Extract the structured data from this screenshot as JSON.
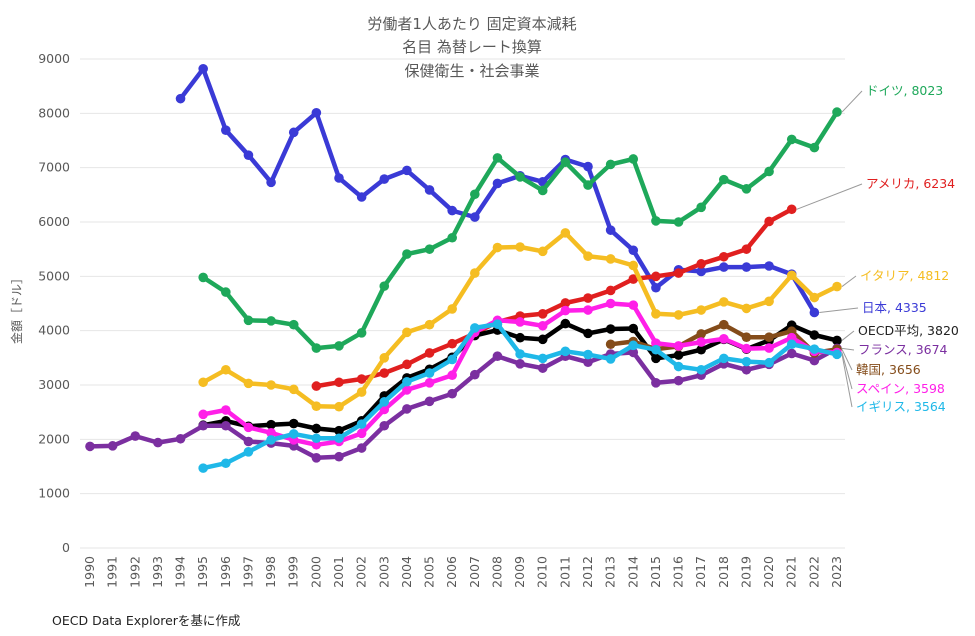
{
  "chart_data": {
    "type": "line",
    "title_lines": [
      "労働者1人あたり 固定資本減耗",
      "名目 為替レート換算",
      "保健衛生・社会事業"
    ],
    "ylabel": "金額［ドル］",
    "xlabel": "",
    "ylim": [
      0,
      9000
    ],
    "yticks": [
      0,
      1000,
      2000,
      3000,
      4000,
      5000,
      6000,
      7000,
      8000,
      9000
    ],
    "categories": [
      "1990",
      "1991",
      "1992",
      "1993",
      "1994",
      "1995",
      "1996",
      "1997",
      "1998",
      "1999",
      "2000",
      "2001",
      "2002",
      "2003",
      "2004",
      "2005",
      "2006",
      "2007",
      "2008",
      "2009",
      "2010",
      "2011",
      "2012",
      "2013",
      "2014",
      "2015",
      "2016",
      "2017",
      "2018",
      "2019",
      "2020",
      "2021",
      "2022",
      "2023"
    ],
    "source": "OECD Data Explorerを基に作成",
    "series": [
      {
        "name": "日本",
        "label": "日本, 4335",
        "color": "#3a3ad6",
        "values": [
          null,
          null,
          null,
          null,
          8270,
          8820,
          7690,
          7230,
          6730,
          7650,
          8010,
          6810,
          6460,
          6790,
          6950,
          6590,
          6210,
          6090,
          6710,
          6850,
          6740,
          7150,
          7020,
          5850,
          5480,
          4790,
          5120,
          5090,
          5170,
          5170,
          5190,
          5040,
          4335,
          null
        ]
      },
      {
        "name": "ドイツ",
        "label": "ドイツ, 8023",
        "color": "#1ea85a",
        "values": [
          null,
          null,
          null,
          null,
          null,
          4980,
          4710,
          4190,
          4180,
          4110,
          3680,
          3720,
          3960,
          4820,
          5410,
          5500,
          5710,
          6510,
          7180,
          6830,
          6580,
          7100,
          6680,
          7060,
          7160,
          6020,
          6000,
          6270,
          6780,
          6610,
          6930,
          7520,
          7370,
          8023
        ]
      },
      {
        "name": "アメリカ",
        "label": "アメリカ, 6234",
        "color": "#e01f1f",
        "values": [
          null,
          null,
          null,
          null,
          null,
          null,
          null,
          null,
          null,
          null,
          2980,
          3050,
          3110,
          3220,
          3380,
          3590,
          3760,
          3950,
          4160,
          4270,
          4310,
          4510,
          4600,
          4740,
          4950,
          5000,
          5060,
          5230,
          5360,
          5500,
          6010,
          6234,
          null,
          null
        ]
      },
      {
        "name": "イタリア",
        "label": "イタリア, 4812",
        "color": "#f5bd22",
        "values": [
          null,
          null,
          null,
          null,
          null,
          3050,
          3280,
          3030,
          3000,
          2920,
          2610,
          2600,
          2870,
          3500,
          3970,
          4110,
          4400,
          5060,
          5530,
          5540,
          5460,
          5800,
          5370,
          5320,
          5200,
          4310,
          4290,
          4380,
          4530,
          4410,
          4540,
          5020,
          4610,
          4812
        ]
      },
      {
        "name": "OECD平均",
        "label": "OECD平均, 3820",
        "color": "#000000",
        "values": [
          null,
          null,
          null,
          null,
          null,
          2260,
          2340,
          2240,
          2270,
          2290,
          2200,
          2160,
          2340,
          2800,
          3130,
          3290,
          3510,
          3910,
          4010,
          3870,
          3840,
          4130,
          3950,
          4030,
          4040,
          3490,
          3550,
          3650,
          3840,
          3660,
          3820,
          4100,
          3920,
          3820
        ]
      },
      {
        "name": "フランス",
        "label": "フランス, 3674",
        "color": "#7b2fa0",
        "values": [
          1870,
          1880,
          2060,
          1940,
          2010,
          2250,
          2250,
          1960,
          1930,
          1880,
          1660,
          1680,
          1840,
          2250,
          2560,
          2700,
          2840,
          3190,
          3530,
          3390,
          3310,
          3530,
          3420,
          3570,
          3600,
          3040,
          3080,
          3180,
          3390,
          3280,
          3380,
          3580,
          3450,
          3674
        ]
      },
      {
        "name": "韓国",
        "label": "韓国, 3656",
        "color": "#844c1a",
        "values": [
          null,
          null,
          null,
          null,
          null,
          null,
          null,
          null,
          null,
          null,
          null,
          null,
          null,
          null,
          null,
          null,
          null,
          null,
          null,
          null,
          null,
          null,
          null,
          3750,
          3800,
          3660,
          3710,
          3940,
          4110,
          3880,
          3880,
          3990,
          3590,
          3656
        ]
      },
      {
        "name": "スペイン",
        "label": "スペイン, 3598",
        "color": "#ff1fe8",
        "values": [
          null,
          null,
          null,
          null,
          null,
          2460,
          2540,
          2220,
          2120,
          1990,
          1900,
          1960,
          2110,
          2550,
          2910,
          3040,
          3180,
          3970,
          4190,
          4160,
          4090,
          4370,
          4380,
          4500,
          4470,
          3770,
          3720,
          3790,
          3850,
          3670,
          3680,
          3870,
          3620,
          3598
        ]
      },
      {
        "name": "イギリス",
        "label": "イギリス, 3564",
        "color": "#1fb8e8",
        "values": [
          null,
          null,
          null,
          null,
          null,
          1470,
          1560,
          1770,
          1990,
          2100,
          2020,
          2020,
          2280,
          2690,
          3060,
          3220,
          3470,
          4050,
          4120,
          3570,
          3490,
          3620,
          3560,
          3480,
          3730,
          3650,
          3340,
          3280,
          3490,
          3430,
          3410,
          3750,
          3660,
          3564
        ]
      }
    ],
    "end_labels_order": [
      "ドイツ",
      "アメリカ",
      "イタリア",
      "日本",
      "OECD平均",
      "フランス",
      "韓国",
      "スペイン",
      "イギリス"
    ]
  }
}
